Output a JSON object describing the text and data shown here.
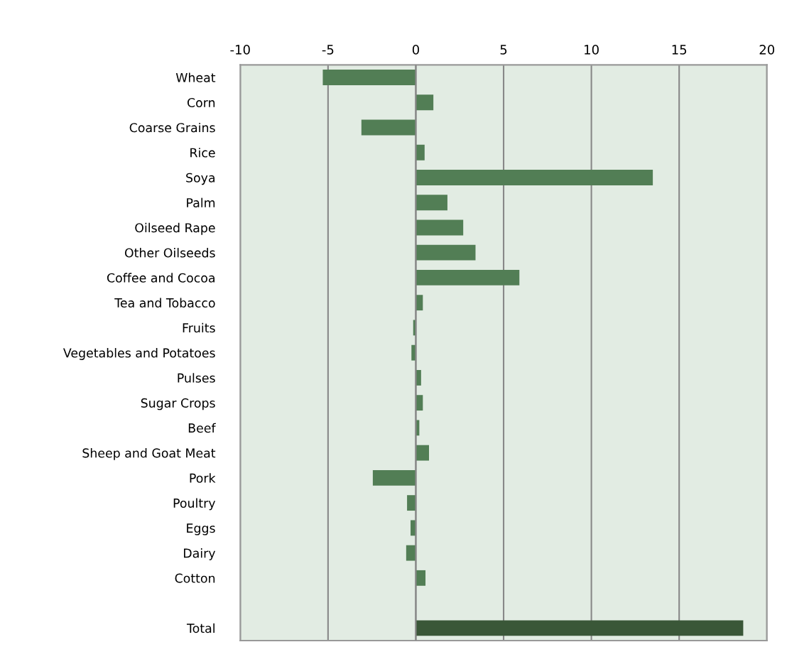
{
  "chart_data": {
    "type": "bar",
    "orientation": "horizontal",
    "categories": [
      "Wheat",
      "Corn",
      "Coarse Grains",
      "Rice",
      "Soya",
      "Palm",
      "Oilseed Rape",
      "Other Oilseeds",
      "Coffee and Cocoa",
      "Tea and Tobacco",
      "Fruits",
      "Vegetables and Potatoes",
      "Pulses",
      "Sugar Crops",
      "Beef",
      "Sheep and Goat Meat",
      "Pork",
      "Poultry",
      "Eggs",
      "Dairy",
      "Cotton",
      null,
      "Total"
    ],
    "values": [
      -5.3,
      1.0,
      -3.1,
      0.5,
      13.5,
      1.8,
      2.7,
      3.4,
      5.9,
      0.4,
      -0.15,
      -0.25,
      0.3,
      0.4,
      0.2,
      0.75,
      -2.45,
      -0.5,
      -0.3,
      -0.55,
      0.55,
      null,
      18.65
    ],
    "colors": [
      "#527e55",
      "#527e55",
      "#527e55",
      "#527e55",
      "#527e55",
      "#527e55",
      "#527e55",
      "#527e55",
      "#527e55",
      "#527e55",
      "#527e55",
      "#527e55",
      "#527e55",
      "#527e55",
      "#527e55",
      "#527e55",
      "#527e55",
      "#527e55",
      "#527e55",
      "#527e55",
      "#527e55",
      "#527e55",
      "#3a5738"
    ],
    "xlim": [
      -10,
      20
    ],
    "xticks": [
      -10,
      -5,
      0,
      5,
      10,
      15,
      20
    ],
    "grid": "x"
  }
}
